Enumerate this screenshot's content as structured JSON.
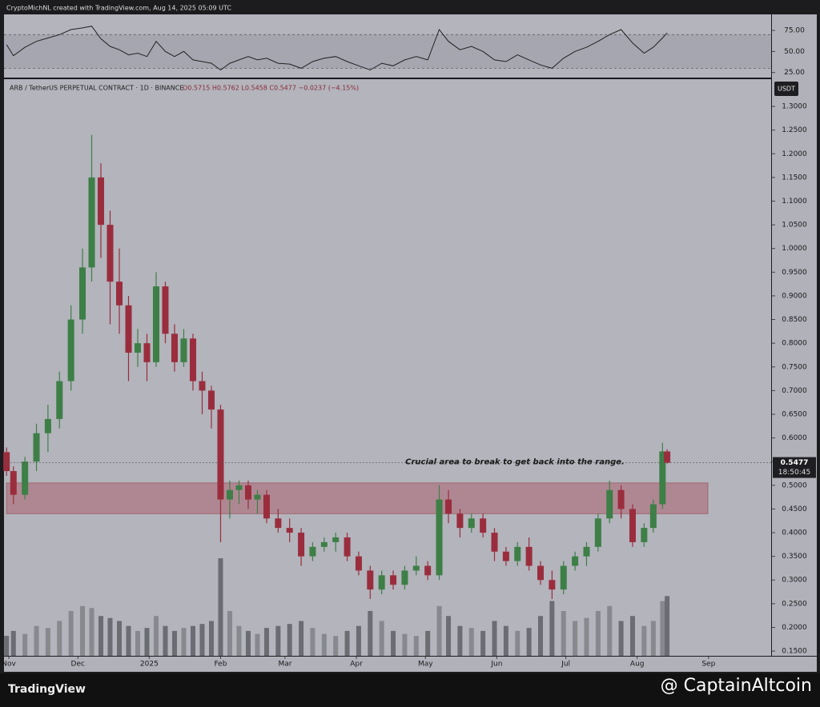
{
  "header": {
    "credit": "CryptoMichNL created with TradingView.com, Aug 14, 2025 05:09 UTC",
    "legend": "ARB / TetherUS PERPETUAL CONTRACT · 1D · BINANCE",
    "ohlc": "O0.5715  H0.5762  L0.5458  C0.5477  −0.0237 (−4.15%)",
    "currency": "USDT",
    "countdown": "18:50:45"
  },
  "footer": {
    "brand": "TradingView",
    "watermark": "@ CaptainAltcoin"
  },
  "chart_data": [
    {
      "type": "line",
      "name": "RSI",
      "color": "#222222",
      "x": [
        -1,
        2,
        7,
        12,
        17,
        22,
        27,
        32,
        36,
        40,
        44,
        48,
        52,
        56,
        60,
        64,
        68,
        72,
        76,
        80,
        84,
        88,
        92,
        96,
        100,
        104,
        108,
        112,
        117,
        122,
        127,
        132,
        137,
        142,
        147,
        152,
        157,
        162,
        167,
        172,
        177,
        182,
        187,
        191,
        196,
        201,
        206,
        211,
        216,
        221,
        226,
        231,
        236,
        241,
        246,
        251,
        256,
        261,
        266,
        271,
        276,
        280,
        284,
        286
      ],
      "values": [
        58,
        45,
        55,
        62,
        66,
        70,
        76,
        78,
        80,
        65,
        56,
        52,
        46,
        48,
        44,
        62,
        50,
        44,
        50,
        40,
        38,
        36,
        28,
        36,
        40,
        44,
        40,
        42,
        36,
        35,
        30,
        38,
        42,
        44,
        38,
        33,
        28,
        36,
        33,
        40,
        44,
        40,
        76,
        62,
        52,
        56,
        50,
        40,
        38,
        46,
        40,
        34,
        30,
        42,
        50,
        55,
        62,
        70,
        76,
        60,
        48,
        55,
        66,
        72
      ],
      "band": [
        30,
        70
      ],
      "xlim": [
        -2.1,
        331.2
      ],
      "ylim": [
        19,
        94
      ],
      "yticks": [
        {
          "value": 25,
          "label": "25.00"
        },
        {
          "value": 50,
          "label": "50.00"
        },
        {
          "value": 75,
          "label": "75.00"
        }
      ]
    },
    {
      "type": "candlestick",
      "up_color": "#3d7f46",
      "down_color": "#9a2d3d",
      "x": [
        -1,
        2,
        7,
        12,
        17,
        22,
        27,
        32,
        36,
        40,
        44,
        48,
        52,
        56,
        60,
        64,
        68,
        72,
        76,
        80,
        84,
        88,
        92,
        96,
        100,
        104,
        108,
        112,
        117,
        122,
        127,
        132,
        137,
        142,
        147,
        152,
        157,
        162,
        167,
        172,
        177,
        182,
        187,
        191,
        196,
        201,
        206,
        211,
        216,
        221,
        226,
        231,
        236,
        241,
        246,
        251,
        256,
        261,
        266,
        271,
        276,
        280,
        284,
        286
      ],
      "open": [
        0.57,
        0.53,
        0.48,
        0.55,
        0.61,
        0.64,
        0.72,
        0.85,
        0.96,
        1.15,
        1.05,
        0.93,
        0.88,
        0.78,
        0.8,
        0.76,
        0.92,
        0.82,
        0.76,
        0.81,
        0.72,
        0.7,
        0.66,
        0.47,
        0.49,
        0.5,
        0.47,
        0.48,
        0.43,
        0.41,
        0.4,
        0.35,
        0.37,
        0.38,
        0.39,
        0.35,
        0.32,
        0.28,
        0.31,
        0.29,
        0.32,
        0.33,
        0.31,
        0.47,
        0.44,
        0.41,
        0.43,
        0.4,
        0.36,
        0.34,
        0.37,
        0.33,
        0.3,
        0.28,
        0.33,
        0.35,
        0.37,
        0.43,
        0.49,
        0.45,
        0.38,
        0.41,
        0.46,
        0.5715
      ],
      "high": [
        0.58,
        0.54,
        0.56,
        0.63,
        0.67,
        0.74,
        0.88,
        1.0,
        1.24,
        1.18,
        1.08,
        1.0,
        0.9,
        0.83,
        0.82,
        0.95,
        0.93,
        0.84,
        0.83,
        0.82,
        0.74,
        0.71,
        0.67,
        0.51,
        0.51,
        0.51,
        0.49,
        0.49,
        0.45,
        0.43,
        0.41,
        0.38,
        0.39,
        0.4,
        0.4,
        0.36,
        0.33,
        0.32,
        0.32,
        0.33,
        0.35,
        0.34,
        0.5,
        0.49,
        0.45,
        0.44,
        0.44,
        0.41,
        0.37,
        0.38,
        0.39,
        0.34,
        0.32,
        0.34,
        0.36,
        0.38,
        0.44,
        0.51,
        0.5,
        0.46,
        0.42,
        0.47,
        0.59,
        0.5762
      ],
      "low": [
        0.52,
        0.46,
        0.47,
        0.53,
        0.57,
        0.62,
        0.7,
        0.82,
        0.93,
        0.98,
        0.84,
        0.82,
        0.72,
        0.75,
        0.72,
        0.75,
        0.8,
        0.74,
        0.75,
        0.7,
        0.65,
        0.62,
        0.38,
        0.43,
        0.46,
        0.45,
        0.44,
        0.42,
        0.4,
        0.38,
        0.33,
        0.34,
        0.36,
        0.36,
        0.34,
        0.31,
        0.26,
        0.27,
        0.28,
        0.28,
        0.31,
        0.3,
        0.3,
        0.42,
        0.39,
        0.4,
        0.39,
        0.34,
        0.33,
        0.33,
        0.32,
        0.29,
        0.26,
        0.27,
        0.32,
        0.33,
        0.36,
        0.42,
        0.43,
        0.37,
        0.37,
        0.4,
        0.45,
        0.5458
      ],
      "close": [
        0.53,
        0.48,
        0.55,
        0.61,
        0.64,
        0.72,
        0.85,
        0.96,
        1.15,
        1.05,
        0.93,
        0.88,
        0.78,
        0.8,
        0.76,
        0.92,
        0.82,
        0.76,
        0.81,
        0.72,
        0.7,
        0.66,
        0.47,
        0.49,
        0.5,
        0.47,
        0.48,
        0.43,
        0.41,
        0.4,
        0.35,
        0.37,
        0.38,
        0.39,
        0.35,
        0.32,
        0.28,
        0.31,
        0.29,
        0.32,
        0.33,
        0.31,
        0.47,
        0.44,
        0.41,
        0.43,
        0.4,
        0.36,
        0.34,
        0.37,
        0.33,
        0.3,
        0.28,
        0.33,
        0.35,
        0.37,
        0.43,
        0.49,
        0.45,
        0.38,
        0.41,
        0.46,
        0.5715,
        0.5477
      ],
      "volume": [
        20,
        25,
        22,
        30,
        28,
        35,
        45,
        50,
        48,
        40,
        38,
        35,
        30,
        25,
        28,
        40,
        30,
        25,
        28,
        30,
        32,
        35,
        98,
        45,
        30,
        25,
        22,
        28,
        30,
        32,
        35,
        28,
        22,
        20,
        25,
        30,
        45,
        35,
        25,
        22,
        20,
        25,
        50,
        40,
        30,
        28,
        25,
        35,
        30,
        25,
        28,
        40,
        55,
        45,
        35,
        38,
        45,
        50,
        35,
        40,
        30,
        35,
        55,
        60
      ],
      "zone": [
        0.44,
        0.505
      ],
      "annotation": "Crucial area to break to get back into the range.",
      "xlim": [
        -2.1,
        331.2
      ],
      "ylim": [
        0.14,
        1.3575
      ],
      "xticks": [
        {
          "value": 0,
          "label": "Nov"
        },
        {
          "value": 30,
          "label": "Dec"
        },
        {
          "value": 61,
          "label": "2025"
        },
        {
          "value": 92,
          "label": "Feb"
        },
        {
          "value": 120,
          "label": "Mar"
        },
        {
          "value": 151,
          "label": "Apr"
        },
        {
          "value": 181,
          "label": "May"
        },
        {
          "value": 212,
          "label": "Jun"
        },
        {
          "value": 242,
          "label": "Jul"
        },
        {
          "value": 273,
          "label": "Aug"
        },
        {
          "value": 304,
          "label": "Sep"
        }
      ],
      "yticks": [
        {
          "value": 0.15,
          "label": "0.1500"
        },
        {
          "value": 0.2,
          "label": "0.2000"
        },
        {
          "value": 0.25,
          "label": "0.2500"
        },
        {
          "value": 0.3,
          "label": "0.3000"
        },
        {
          "value": 0.35,
          "label": "0.3500"
        },
        {
          "value": 0.4,
          "label": "0.4000"
        },
        {
          "value": 0.45,
          "label": "0.4500"
        },
        {
          "value": 0.5,
          "label": "0.5000"
        },
        {
          "value": 0.55,
          "label": "0.5500"
        },
        {
          "value": 0.6,
          "label": "0.6000"
        },
        {
          "value": 0.65,
          "label": "0.6500"
        },
        {
          "value": 0.7,
          "label": "0.7000"
        },
        {
          "value": 0.75,
          "label": "0.7500"
        },
        {
          "value": 0.8,
          "label": "0.8000"
        },
        {
          "value": 0.85,
          "label": "0.8500"
        },
        {
          "value": 0.9,
          "label": "0.9000"
        },
        {
          "value": 0.95,
          "label": "0.9500"
        },
        {
          "value": 1.0,
          "label": "1.0000"
        },
        {
          "value": 1.05,
          "label": "1.0500"
        },
        {
          "value": 1.1,
          "label": "1.1000"
        },
        {
          "value": 1.15,
          "label": "1.1500"
        },
        {
          "value": 1.2,
          "label": "1.2000"
        },
        {
          "value": 1.25,
          "label": "1.2500"
        },
        {
          "value": 1.3,
          "label": "1.3000"
        }
      ]
    }
  ]
}
